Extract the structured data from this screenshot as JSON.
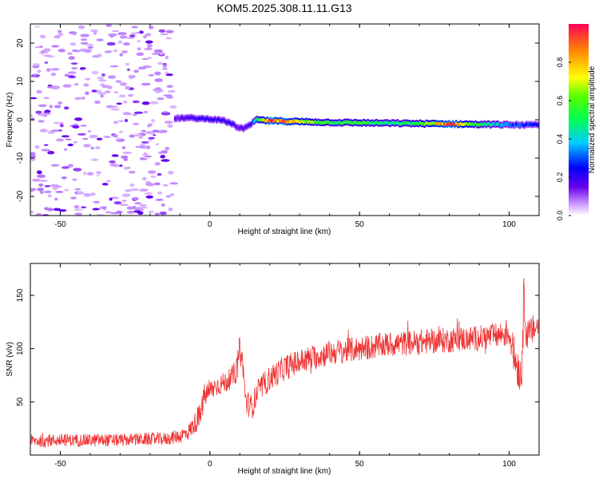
{
  "title": "KOM5.2025.308.11.11.G13",
  "chart_data": [
    {
      "type": "heatmap",
      "title": "",
      "xlabel": "Height of straight line (km)",
      "ylabel": "Frequency (Hz)",
      "xlim": [
        -60,
        110
      ],
      "ylim": [
        -25,
        25
      ],
      "xticks": [
        -50,
        0,
        50,
        100
      ],
      "yticks": [
        -20,
        -10,
        0,
        10,
        20
      ],
      "colorbar": {
        "label": "Normalized spectral amplitude",
        "range": [
          0,
          1
        ],
        "ticks": [
          "0.0",
          "0.2",
          "0.4",
          "0.6",
          "0.8"
        ]
      },
      "signal_trace": {
        "x": [
          -12,
          -8,
          -4,
          0,
          4,
          7,
          9,
          11,
          13,
          15,
          20,
          30,
          40,
          50,
          60,
          70,
          80,
          90,
          100,
          110
        ],
        "frequency_hz": [
          0.3,
          0.5,
          0.3,
          0.2,
          -0.2,
          -1.0,
          -2.0,
          -2.3,
          -1.5,
          0.0,
          -0.3,
          -0.5,
          -0.7,
          -0.8,
          -0.9,
          -1.0,
          -1.1,
          -1.2,
          -1.3,
          -1.4
        ],
        "amplitude": [
          0.15,
          0.15,
          0.2,
          0.2,
          0.2,
          0.2,
          0.15,
          0.15,
          0.2,
          0.45,
          0.95,
          0.65,
          0.5,
          0.55,
          0.45,
          0.55,
          0.9,
          0.5,
          0.3,
          0.25
        ]
      },
      "noise_region_x": [
        -60,
        -12
      ]
    },
    {
      "type": "line",
      "title": "",
      "xlabel": "Height of straight line (km)",
      "ylabel": "SNR (v/v)",
      "xlim": [
        -60,
        110
      ],
      "ylim": [
        0,
        180
      ],
      "xticks": [
        -50,
        0,
        50,
        100
      ],
      "yticks": [
        50,
        100,
        150
      ],
      "series": [
        {
          "name": "SNR",
          "color": "#ee3333",
          "x": [
            -60,
            -50,
            -40,
            -30,
            -20,
            -15,
            -10,
            -7,
            -5,
            -3,
            -2,
            0,
            2,
            5,
            7,
            9,
            10,
            11,
            12,
            14,
            16,
            20,
            25,
            30,
            35,
            40,
            50,
            60,
            70,
            80,
            90,
            95,
            100,
            102,
            104,
            105,
            106,
            108,
            110
          ],
          "y": [
            13,
            14,
            14,
            14,
            15,
            15,
            18,
            22,
            30,
            38,
            55,
            60,
            65,
            68,
            72,
            80,
            100,
            85,
            50,
            45,
            60,
            72,
            82,
            88,
            92,
            96,
            100,
            104,
            106,
            108,
            110,
            112,
            115,
            90,
            75,
            150,
            110,
            118,
            122
          ],
          "noise_amp": [
            6,
            6,
            6,
            6,
            6,
            6,
            7,
            8,
            10,
            12,
            12,
            10,
            10,
            10,
            10,
            12,
            14,
            12,
            12,
            12,
            12,
            12,
            12,
            12,
            12,
            12,
            12,
            12,
            12,
            12,
            12,
            12,
            14,
            18,
            22,
            25,
            16,
            14,
            12
          ]
        }
      ]
    }
  ]
}
